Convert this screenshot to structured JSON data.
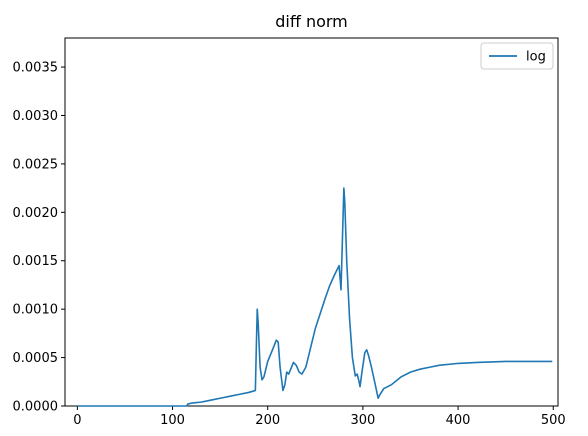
{
  "chart_data": {
    "type": "line",
    "title": "diff norm",
    "xlabel": "",
    "ylabel": "",
    "xlim": [
      -13,
      505
    ],
    "ylim": [
      0,
      0.0038
    ],
    "x_ticks": [
      0,
      100,
      200,
      300,
      400,
      500
    ],
    "x_tick_labels": [
      "0",
      "100",
      "200",
      "300",
      "400",
      "500"
    ],
    "y_ticks": [
      0,
      0.0005,
      0.001,
      0.0015,
      0.002,
      0.0025,
      0.003,
      0.0035
    ],
    "y_tick_labels": [
      "0.0000",
      "0.0005",
      "0.0010",
      "0.0015",
      "0.0020",
      "0.0025",
      "0.0030",
      "0.0035"
    ],
    "grid": false,
    "legend": {
      "position": "top-right"
    },
    "series": [
      {
        "name": "log",
        "color": "#1f77b4",
        "points": [
          [
            0,
            0
          ],
          [
            50,
            0
          ],
          [
            100,
            0
          ],
          [
            115,
            0
          ],
          [
            116,
            2e-05
          ],
          [
            120,
            3e-05
          ],
          [
            130,
            4e-05
          ],
          [
            140,
            6e-05
          ],
          [
            150,
            8e-05
          ],
          [
            160,
            0.0001
          ],
          [
            170,
            0.00012
          ],
          [
            180,
            0.00014
          ],
          [
            187,
            0.00016
          ],
          [
            188,
            0.0006
          ],
          [
            189,
            0.001
          ],
          [
            190,
            0.00085
          ],
          [
            192,
            0.0004
          ],
          [
            194,
            0.00027
          ],
          [
            196,
            0.0003
          ],
          [
            200,
            0.00046
          ],
          [
            205,
            0.00058
          ],
          [
            209,
            0.00068
          ],
          [
            211,
            0.00066
          ],
          [
            213,
            0.0004
          ],
          [
            216,
            0.00016
          ],
          [
            218,
            0.00022
          ],
          [
            220,
            0.00035
          ],
          [
            222,
            0.00033
          ],
          [
            225,
            0.0004
          ],
          [
            227,
            0.00045
          ],
          [
            230,
            0.00042
          ],
          [
            233,
            0.00035
          ],
          [
            236,
            0.00033
          ],
          [
            240,
            0.0004
          ],
          [
            245,
            0.0006
          ],
          [
            250,
            0.0008
          ],
          [
            255,
            0.00095
          ],
          [
            260,
            0.0011
          ],
          [
            265,
            0.00124
          ],
          [
            270,
            0.00135
          ],
          [
            275,
            0.00145
          ],
          [
            277,
            0.0012
          ],
          [
            279,
            0.0019
          ],
          [
            280,
            0.00225
          ],
          [
            281,
            0.0021
          ],
          [
            283,
            0.0015
          ],
          [
            286,
            0.0009
          ],
          [
            289,
            0.0005
          ],
          [
            292,
            0.00031
          ],
          [
            294,
            0.00033
          ],
          [
            296,
            0.00025
          ],
          [
            297,
            0.0002
          ],
          [
            299,
            0.00035
          ],
          [
            302,
            0.00055
          ],
          [
            304,
            0.00058
          ],
          [
            306,
            0.00052
          ],
          [
            309,
            0.0004
          ],
          [
            313,
            0.00022
          ],
          [
            316,
            8e-05
          ],
          [
            318,
            0.00012
          ],
          [
            322,
            0.00018
          ],
          [
            330,
            0.00022
          ],
          [
            340,
            0.0003
          ],
          [
            350,
            0.00035
          ],
          [
            360,
            0.00038
          ],
          [
            370,
            0.0004
          ],
          [
            380,
            0.00042
          ],
          [
            400,
            0.00044
          ],
          [
            420,
            0.00045
          ],
          [
            450,
            0.00046
          ],
          [
            499,
            0.00046
          ]
        ]
      }
    ]
  }
}
